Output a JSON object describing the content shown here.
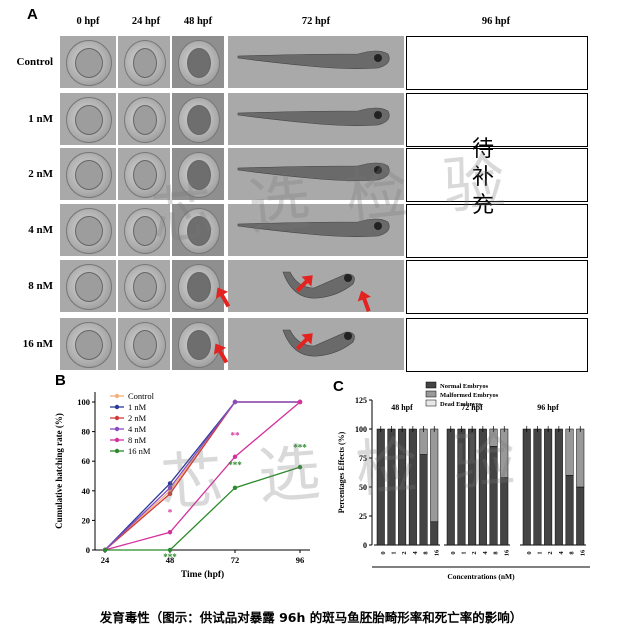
{
  "panelA": {
    "letter": "A",
    "columns": [
      "0 hpf",
      "24 hpf",
      "48 hpf",
      "72 hpf",
      "96 hpf"
    ],
    "rows": [
      "Control",
      "1 nM",
      "2 nM",
      "4 nM",
      "8 nM",
      "16 nM"
    ],
    "pending_chars": [
      "待",
      "补",
      "充"
    ]
  },
  "panelB": {
    "letter": "B"
  },
  "panelC": {
    "letter": "C"
  },
  "watermark": "芯 选 检 验",
  "caption": "发育毒性（图示：供试品对暴露 96h 的斑马鱼胚胎畸形率和死亡率的影响）",
  "chart_data": [
    {
      "type": "line",
      "ylabel": "Cumulative hatching rate (%)",
      "xlabel": "Time (hpf)",
      "x": [
        24,
        48,
        72,
        96
      ],
      "xlim": [
        24,
        96
      ],
      "ylim": [
        0,
        100
      ],
      "yticks": [
        0,
        20,
        40,
        60,
        80,
        100
      ],
      "legend_position": "top-left",
      "series": [
        {
          "name": "Control",
          "color": "#f2b17a",
          "values": [
            0,
            40,
            100,
            100
          ]
        },
        {
          "name": "1 nM",
          "color": "#2a3a9a",
          "values": [
            0,
            45,
            100,
            100
          ]
        },
        {
          "name": "2 nM",
          "color": "#d23a3a",
          "values": [
            0,
            38,
            100,
            100
          ]
        },
        {
          "name": "4 nM",
          "color": "#8a4bc2",
          "values": [
            0,
            42,
            100,
            100
          ]
        },
        {
          "name": "8 nM",
          "color": "#d4319e",
          "values": [
            0,
            12,
            63,
            100
          ]
        },
        {
          "name": "16 nM",
          "color": "#2b8a2b",
          "values": [
            0,
            0,
            42,
            56
          ]
        }
      ],
      "annotations": [
        "*",
        "***",
        "**",
        "***",
        "***"
      ]
    },
    {
      "type": "bar",
      "stacked": true,
      "ylabel": "Percentages Effects (%)",
      "xlabel": "Concentrations (nM)",
      "ylim": [
        0,
        125
      ],
      "yticks": [
        0,
        25,
        50,
        75,
        100,
        125
      ],
      "groups": [
        "48 hpf",
        "72 hpf",
        "96 hpf"
      ],
      "categories": [
        "0",
        "1",
        "2",
        "4",
        "8",
        "16"
      ],
      "legend": [
        {
          "name": "Normal Embryos",
          "color": "#444444"
        },
        {
          "name": "Malformed Embryos",
          "color": "#999999"
        },
        {
          "name": "Dead Embryos",
          "color": "#e8e8e8"
        }
      ],
      "series": [
        {
          "name": "Normal Embryos",
          "values": [
            [
              100,
              100,
              100,
              100,
              78,
              20
            ],
            [
              100,
              100,
              100,
              100,
              85,
              58
            ],
            [
              100,
              100,
              100,
              100,
              60,
              50
            ]
          ]
        },
        {
          "name": "Malformed Embryos",
          "values": [
            [
              0,
              0,
              0,
              0,
              22,
              80
            ],
            [
              0,
              0,
              0,
              0,
              15,
              42
            ],
            [
              0,
              0,
              0,
              0,
              40,
              50
            ]
          ]
        },
        {
          "name": "Dead Embryos",
          "values": [
            [
              0,
              0,
              0,
              0,
              0,
              0
            ],
            [
              0,
              0,
              0,
              0,
              0,
              0
            ],
            [
              0,
              0,
              0,
              0,
              0,
              0
            ]
          ]
        }
      ]
    }
  ]
}
